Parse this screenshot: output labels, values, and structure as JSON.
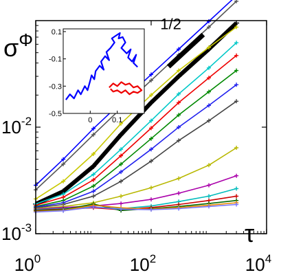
{
  "chart_data": [
    {
      "type": "line",
      "x_scale": "log",
      "y_scale": "log",
      "xlim": [
        1,
        10000
      ],
      "ylim": [
        0.001,
        0.1
      ],
      "x_ticks": [
        1,
        100,
        10000
      ],
      "x_tick_labels": [
        {
          "base": "10",
          "exp": "0"
        },
        {
          "base": "10",
          "exp": "2"
        },
        {
          "base": "10",
          "exp": "4"
        }
      ],
      "y_ticks": [
        0.001,
        0.01
      ],
      "y_tick_labels": [
        {
          "base": "10",
          "exp": "-3"
        },
        {
          "base": "10",
          "exp": "-2"
        }
      ],
      "ylabel": {
        "base": "σ",
        "sup": "Φ"
      },
      "xlabel": "τ",
      "grid": false,
      "annotation": {
        "text": "1/2",
        "slope": 0.5,
        "x": [
          200,
          800
        ],
        "y": [
          0.037,
          0.074
        ]
      },
      "series": [
        {
          "color": "#0000ff",
          "x": [
            1,
            3,
            10,
            30,
            100,
            300,
            1000,
            3000
          ],
          "y": [
            0.00285,
            0.005,
            0.0097,
            0.017,
            0.0312,
            0.054,
            0.0985,
            0.171
          ]
        },
        {
          "color": "#555555",
          "x": [
            1,
            3,
            10,
            30,
            100,
            300,
            1000,
            3000
          ],
          "y": [
            0.00258,
            0.0045,
            0.0085,
            0.015,
            0.0275,
            0.0478,
            0.087,
            0.152
          ]
        },
        {
          "color": "#000000",
          "thick": true,
          "x": [
            1,
            3,
            10,
            30,
            100,
            300,
            1000,
            3000
          ],
          "y": [
            0.0019,
            0.0025,
            0.0043,
            0.0085,
            0.017,
            0.03,
            0.054,
            0.095
          ]
        },
        {
          "color": "#c8c800",
          "x": [
            1,
            3,
            10,
            30,
            100,
            300,
            1000,
            3000
          ],
          "y": [
            0.00212,
            0.0031,
            0.0056,
            0.0108,
            0.02,
            0.034,
            0.056,
            0.087
          ]
        },
        {
          "color": "#00c8c8",
          "x": [
            1,
            3,
            10,
            30,
            100,
            300,
            1000,
            3000
          ],
          "y": [
            0.0019,
            0.00235,
            0.0036,
            0.0062,
            0.0115,
            0.0205,
            0.036,
            0.062
          ]
        },
        {
          "color": "#ee0000",
          "x": [
            1,
            3,
            10,
            30,
            100,
            300,
            1000,
            3000
          ],
          "y": [
            0.00185,
            0.0022,
            0.0032,
            0.0054,
            0.0098,
            0.017,
            0.029,
            0.047
          ]
        },
        {
          "color": "#008800",
          "x": [
            1,
            3,
            10,
            30,
            100,
            300,
            1000,
            3000
          ],
          "y": [
            0.0018,
            0.00205,
            0.0028,
            0.0045,
            0.0078,
            0.013,
            0.0215,
            0.034
          ]
        },
        {
          "color": "#2020ee",
          "x": [
            1,
            3,
            10,
            30,
            100,
            300,
            1000,
            3000
          ],
          "y": [
            0.00178,
            0.00195,
            0.0025,
            0.0038,
            0.0062,
            0.01,
            0.016,
            0.025
          ]
        },
        {
          "color": "#444444",
          "x": [
            1,
            3,
            10,
            30,
            100,
            300,
            1000,
            3000
          ],
          "y": [
            0.00175,
            0.00188,
            0.00225,
            0.0031,
            0.0048,
            0.0075,
            0.0115,
            0.0175
          ]
        },
        {
          "color": "#b8b800",
          "x": [
            1,
            3,
            10,
            30,
            100,
            300,
            1000,
            3000
          ],
          "y": [
            0.00172,
            0.0018,
            0.00195,
            0.00225,
            0.0027,
            0.0033,
            0.0044,
            0.0064
          ]
        },
        {
          "color": "#aa00aa",
          "x": [
            1,
            3,
            10,
            30,
            100,
            300,
            1000,
            3000
          ],
          "y": [
            0.0017,
            0.00176,
            0.00182,
            0.00192,
            0.0021,
            0.0024,
            0.00285,
            0.0035
          ]
        },
        {
          "color": "#00bbbb",
          "x": [
            1,
            3,
            10,
            30,
            100,
            300,
            1000,
            3000
          ],
          "y": [
            0.00168,
            0.00172,
            0.00178,
            0.00172,
            0.00182,
            0.002,
            0.00225,
            0.00265
          ]
        },
        {
          "color": "#cc0000",
          "x": [
            1,
            3,
            10,
            30,
            100,
            300,
            1000,
            3000
          ],
          "y": [
            0.00166,
            0.0017,
            0.00175,
            0.00168,
            0.00176,
            0.00188,
            0.00205,
            0.00225
          ]
        },
        {
          "color": "#006600",
          "x": [
            1,
            3,
            10,
            30,
            100,
            300,
            1000,
            3000
          ],
          "y": [
            0.00164,
            0.00168,
            0.0019,
            0.00165,
            0.00172,
            0.0018,
            0.00192,
            0.00205
          ]
        },
        {
          "color": "#e88800",
          "x": [
            1,
            3,
            10,
            30,
            100,
            300,
            1000,
            3000
          ],
          "y": [
            0.00162,
            0.00166,
            0.00185,
            0.00175,
            0.0017,
            0.00176,
            0.00185,
            0.00195
          ]
        },
        {
          "color": "#7777ff",
          "x": [
            1,
            3,
            10,
            30,
            100,
            300,
            1000,
            3000
          ],
          "y": [
            0.0016,
            0.00164,
            0.00178,
            0.0017,
            0.00168,
            0.00172,
            0.0018,
            0.00188
          ]
        }
      ]
    },
    {
      "type": "line",
      "inset": true,
      "xlim": [
        -0.1,
        0.2
      ],
      "ylim": [
        -0.5,
        0.12
      ],
      "x_ticks": [
        0,
        0.1
      ],
      "x_tick_labels": [
        "0",
        "0.1"
      ],
      "y_ticks": [
        0.1,
        -0.1,
        -0.3,
        -0.5
      ],
      "y_tick_labels": [
        "0.1",
        "-0.1",
        "-0.3",
        "-0.5"
      ],
      "series": [
        {
          "color": "#0000ff",
          "x": [
            -0.09,
            -0.075,
            -0.06,
            -0.045,
            -0.035,
            -0.02,
            -0.01,
            0.0,
            0.005,
            0.015,
            0.02,
            0.035,
            0.05,
            0.04,
            0.055,
            0.07,
            0.06,
            0.075,
            0.09,
            0.08,
            0.095,
            0.11,
            0.105,
            0.12,
            0.13,
            0.115,
            0.135,
            0.15,
            0.14,
            0.155,
            0.17,
            0.16,
            0.175
          ],
          "y": [
            -0.4,
            -0.36,
            -0.39,
            -0.33,
            -0.36,
            -0.3,
            -0.33,
            -0.26,
            -0.22,
            -0.25,
            -0.19,
            -0.15,
            -0.18,
            -0.12,
            -0.08,
            -0.11,
            -0.05,
            -0.02,
            0.02,
            0.05,
            0.07,
            0.09,
            0.05,
            0.06,
            0.02,
            -0.02,
            -0.06,
            -0.03,
            -0.09,
            -0.12,
            -0.07,
            -0.13,
            -0.16
          ]
        },
        {
          "color": "#ee0000",
          "x": [
            0.07,
            0.085,
            0.1,
            0.115,
            0.13,
            0.145,
            0.16,
            0.175,
            0.19,
            0.175,
            0.16,
            0.145,
            0.13,
            0.115,
            0.1,
            0.085,
            0.075
          ],
          "y": [
            -0.31,
            -0.28,
            -0.3,
            -0.27,
            -0.29,
            -0.28,
            -0.31,
            -0.3,
            -0.33,
            -0.35,
            -0.34,
            -0.36,
            -0.33,
            -0.35,
            -0.33,
            -0.34,
            -0.32
          ]
        }
      ]
    }
  ]
}
